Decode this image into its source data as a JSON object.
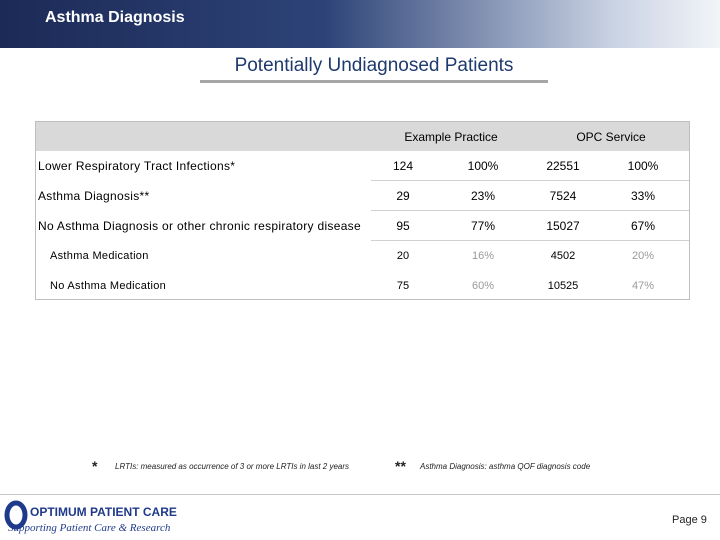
{
  "header": {
    "title": "Asthma Diagnosis"
  },
  "slide_title": "Potentially Undiagnosed Patients",
  "table": {
    "groups": [
      "Example Practice",
      "OPC Service"
    ],
    "rows": [
      [
        "Lower Respiratory Tract Infections*",
        "124",
        "100%",
        "22551",
        "100%"
      ],
      [
        "Asthma Diagnosis**",
        "29",
        "23%",
        "7524",
        "33%"
      ],
      [
        "No Asthma Diagnosis or other chronic respiratory disease",
        "95",
        "77%",
        "15027",
        "67%"
      ],
      [
        "Asthma Medication",
        "20",
        "16%",
        "4502",
        "20%"
      ],
      [
        "No Asthma Medication",
        "75",
        "60%",
        "10525",
        "47%"
      ]
    ]
  },
  "footnotes": [
    {
      "mark": "*",
      "text": "LRTIs: measured as occurrence of 3 or more LRTIs in last 2 years"
    },
    {
      "mark": "**",
      "text": "Asthma Diagnosis: asthma QOF diagnosis code"
    }
  ],
  "logo": {
    "name": "OPTIMUM PATIENT CARE",
    "tagline": "Supporting Patient Care & Research"
  },
  "page": "Page 9"
}
